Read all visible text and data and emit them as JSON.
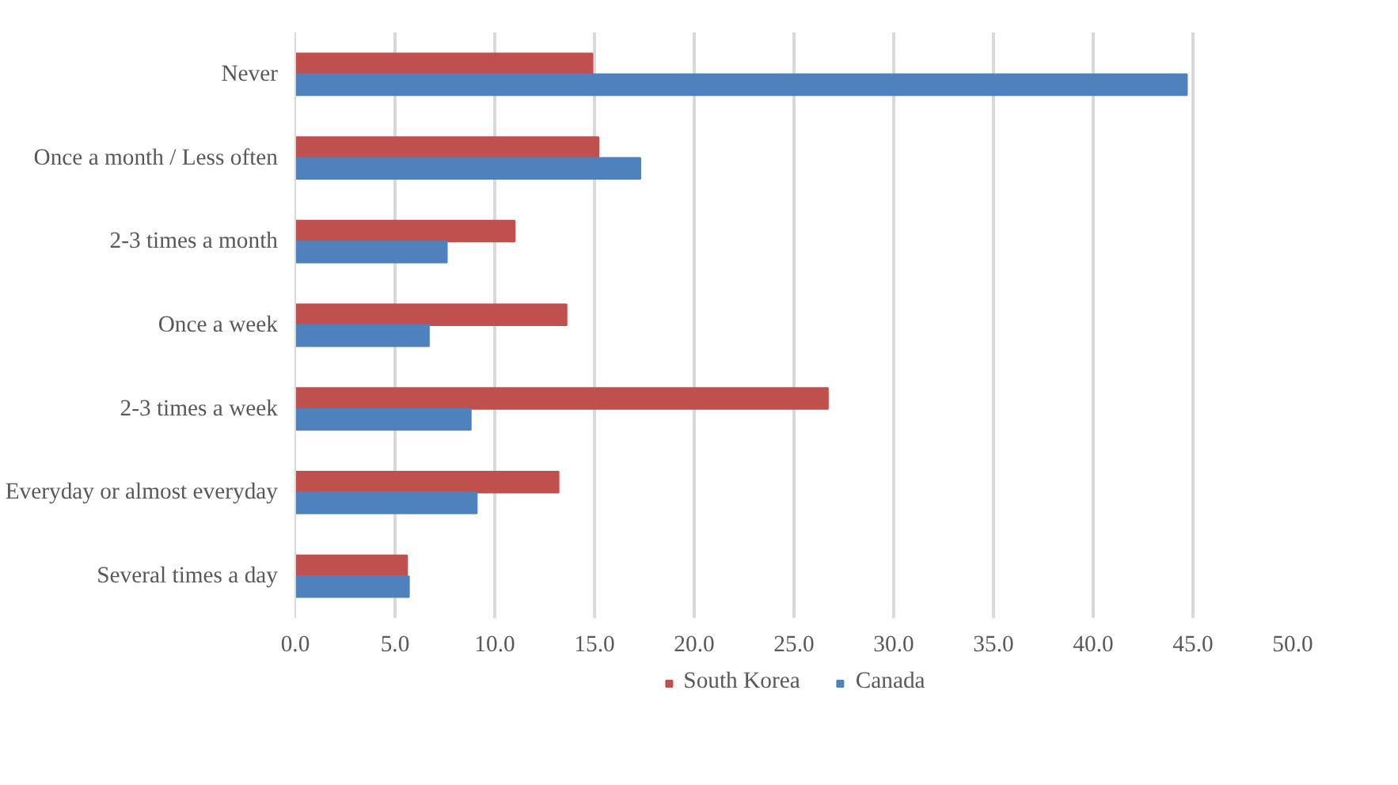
{
  "chart_data": {
    "type": "bar",
    "orientation": "horizontal",
    "categories": [
      "Never",
      "Once a month / Less often",
      "2-3 times a month",
      "Once a week",
      "2-3 times a week",
      "Everyday or almost everyday",
      "Several times a day"
    ],
    "series": [
      {
        "name": "South Korea",
        "color": "#c0504d",
        "values": [
          14.9,
          15.2,
          11.0,
          13.6,
          26.7,
          13.2,
          5.6
        ]
      },
      {
        "name": "Canada",
        "color": "#4f81bd",
        "values": [
          44.7,
          17.3,
          7.6,
          6.7,
          8.8,
          9.1,
          5.7
        ]
      }
    ],
    "xlim": [
      0,
      50
    ],
    "xticks": [
      {
        "value": 0,
        "label": "0.0"
      },
      {
        "value": 5,
        "label": "5.0"
      },
      {
        "value": 10,
        "label": "10.0"
      },
      {
        "value": 15,
        "label": "15.0"
      },
      {
        "value": 20,
        "label": "20.0"
      },
      {
        "value": 25,
        "label": "25.0"
      },
      {
        "value": 30,
        "label": "30.0"
      },
      {
        "value": 35,
        "label": "35.0"
      },
      {
        "value": 40,
        "label": "40.0"
      },
      {
        "value": 45,
        "label": "45.0"
      },
      {
        "value": 50,
        "label": "50.0"
      }
    ],
    "grid": "x",
    "legend": "bottom"
  }
}
